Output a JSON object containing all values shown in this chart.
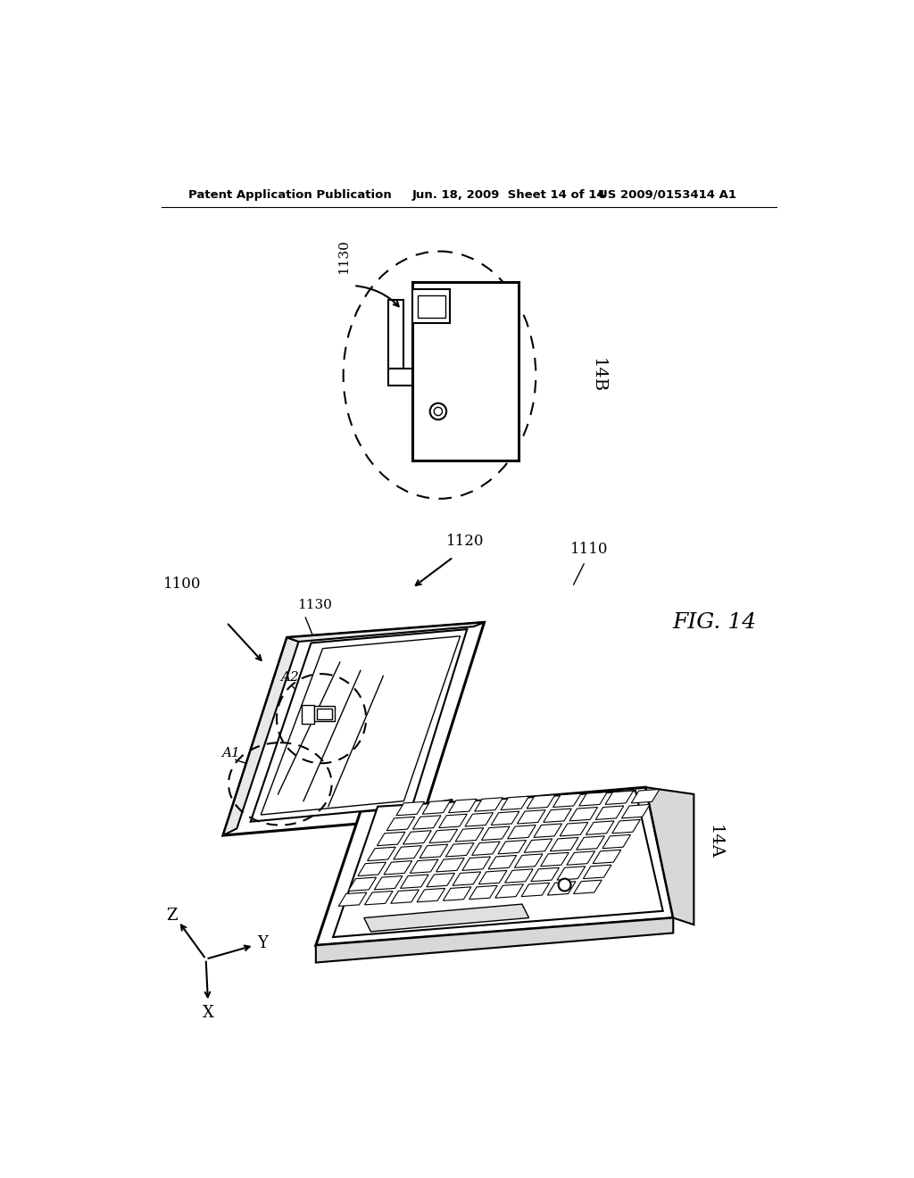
{
  "bg_color": "#ffffff",
  "line_color": "#000000",
  "header_left": "Patent Application Publication",
  "header_mid": "Jun. 18, 2009  Sheet 14 of 14",
  "header_right": "US 2009/0153414 A1",
  "fig_label": "FIG. 14",
  "label_14A": "14A",
  "label_14B": "14B",
  "label_1100": "1100",
  "label_1110": "1110",
  "label_1120": "1120",
  "label_1130": "1130",
  "label_A1": "A1",
  "label_A2": "A2",
  "axis_Z": "Z",
  "axis_X": "X",
  "axis_Y": "Y"
}
